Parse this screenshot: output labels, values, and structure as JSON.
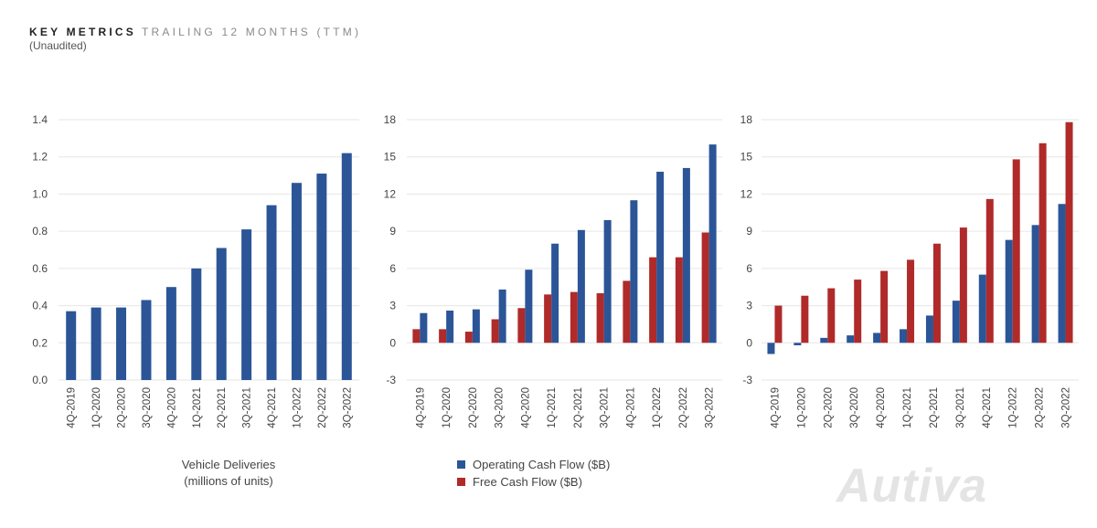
{
  "header": {
    "title_bold": "KEY METRICS",
    "title_light": "TRAILING 12 MONTHS (TTM)",
    "subtitle": "(Unaudited)"
  },
  "colors": {
    "blue": "#2b5597",
    "red": "#b02a2a",
    "grid": "#e6e6e6"
  },
  "chart_data": [
    {
      "type": "bar",
      "categories": [
        "4Q-2019",
        "1Q-2020",
        "2Q-2020",
        "3Q-2020",
        "4Q-2020",
        "1Q-2021",
        "2Q-2021",
        "3Q-2021",
        "4Q-2021",
        "1Q-2022",
        "2Q-2022",
        "3Q-2022"
      ],
      "series": [
        {
          "name": "",
          "color": "#2b5597",
          "values": [
            0.37,
            0.39,
            0.39,
            0.43,
            0.5,
            0.6,
            0.71,
            0.81,
            0.94,
            1.06,
            1.11,
            1.22
          ]
        }
      ],
      "xlabel": "Vehicle Deliveries\n(millions of units)",
      "ylim": [
        0,
        1.4
      ],
      "yticks": [
        "1.4",
        "1.2",
        "1.0",
        "0.8",
        "0.6",
        "0.4",
        "0.2",
        "0.0"
      ],
      "grid": true
    },
    {
      "type": "bar",
      "categories": [
        "4Q-2019",
        "1Q-2020",
        "2Q-2020",
        "3Q-2020",
        "4Q-2020",
        "1Q-2021",
        "2Q-2021",
        "3Q-2021",
        "4Q-2021",
        "1Q-2022",
        "2Q-2022",
        "3Q-2022"
      ],
      "series": [
        {
          "name": "Free Cash Flow ($B)",
          "color": "#b02a2a",
          "values": [
            1.1,
            1.1,
            0.9,
            1.9,
            2.8,
            3.9,
            4.1,
            4.0,
            5.0,
            6.9,
            6.9,
            8.9
          ]
        },
        {
          "name": "Operating Cash Flow ($B)",
          "color": "#2b5597",
          "values": [
            2.4,
            2.6,
            2.7,
            4.3,
            5.9,
            8.0,
            9.1,
            9.9,
            11.5,
            13.8,
            14.1,
            16.0
          ]
        }
      ],
      "ylim": [
        -3,
        18
      ],
      "yticks": [
        "18",
        "15",
        "12",
        "9",
        "6",
        "3",
        "0",
        "-3"
      ],
      "grid": true,
      "legend": "bottom"
    },
    {
      "type": "bar",
      "categories": [
        "4Q-2019",
        "1Q-2020",
        "2Q-2020",
        "3Q-2020",
        "4Q-2020",
        "1Q-2021",
        "2Q-2021",
        "3Q-2021",
        "4Q-2021",
        "1Q-2022",
        "2Q-2022",
        "3Q-2022"
      ],
      "series": [
        {
          "name": "",
          "color": "#2b5597",
          "values": [
            -0.9,
            -0.2,
            0.4,
            0.6,
            0.8,
            1.1,
            2.2,
            3.4,
            5.5,
            8.3,
            9.5,
            11.2
          ]
        },
        {
          "name": "",
          "color": "#b02a2a",
          "values": [
            3.0,
            3.8,
            4.4,
            5.1,
            5.8,
            6.7,
            8.0,
            9.3,
            11.6,
            14.8,
            16.1,
            17.8
          ]
        }
      ],
      "ylim": [
        -3,
        18
      ],
      "yticks": [
        "18",
        "15",
        "12",
        "9",
        "6",
        "3",
        "0",
        "-3"
      ],
      "grid": true
    }
  ],
  "legend": {
    "item1": "Operating Cash Flow ($B)",
    "item2": "Free Cash Flow ($B)"
  },
  "captions": {
    "chart1_line1": "Vehicle Deliveries",
    "chart1_line2": "(millions of units)"
  },
  "watermark": "Autiva"
}
